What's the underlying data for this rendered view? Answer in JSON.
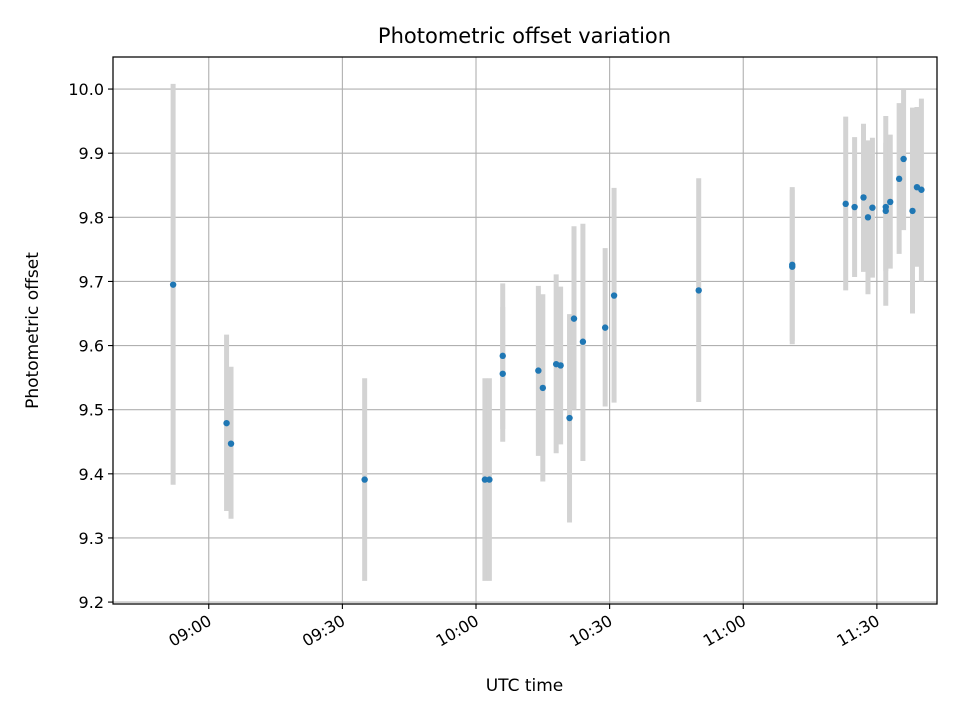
{
  "chart_data": {
    "type": "scatter",
    "title": "Photometric offset variation",
    "xlabel": "UTC time",
    "ylabel": "Photometric offset",
    "xlim_minutes": [
      518.5,
      703.5
    ],
    "ylim": [
      9.197,
      10.05
    ],
    "grid": true,
    "x_ticks": [
      {
        "m": 540,
        "label": "09:00"
      },
      {
        "m": 570,
        "label": "09:30"
      },
      {
        "m": 600,
        "label": "10:00"
      },
      {
        "m": 630,
        "label": "10:30"
      },
      {
        "m": 660,
        "label": "11:00"
      },
      {
        "m": 690,
        "label": "11:30"
      }
    ],
    "y_ticks": [
      {
        "v": 9.2,
        "label": "9.2"
      },
      {
        "v": 9.3,
        "label": "9.3"
      },
      {
        "v": 9.4,
        "label": "9.4"
      },
      {
        "v": 9.5,
        "label": "9.5"
      },
      {
        "v": 9.6,
        "label": "9.6"
      },
      {
        "v": 9.7,
        "label": "9.7"
      },
      {
        "v": 9.8,
        "label": "9.8"
      },
      {
        "v": 9.9,
        "label": "9.9"
      },
      {
        "v": 10.0,
        "label": "10.0"
      }
    ],
    "colors": {
      "point": "#1f77b4",
      "errorbar": "#d3d3d3",
      "grid": "#b0b0b0"
    },
    "points": [
      {
        "time": "08:52",
        "y": 9.695,
        "lo": 9.383,
        "hi": 10.008
      },
      {
        "time": "09:04",
        "y": 9.479,
        "lo": 9.342,
        "hi": 9.617
      },
      {
        "time": "09:05",
        "y": 9.447,
        "lo": 9.33,
        "hi": 9.567
      },
      {
        "time": "09:35",
        "y": 9.391,
        "lo": 9.233,
        "hi": 9.549
      },
      {
        "time": "10:02",
        "y": 9.391,
        "lo": 9.233,
        "hi": 9.549
      },
      {
        "time": "10:03",
        "y": 9.391,
        "lo": 9.233,
        "hi": 9.549
      },
      {
        "time": "10:06",
        "y": 9.556,
        "lo": 9.45,
        "hi": 9.66
      },
      {
        "time": "10:06",
        "y": 9.584,
        "lo": 9.47,
        "hi": 9.697
      },
      {
        "time": "10:14",
        "y": 9.561,
        "lo": 9.428,
        "hi": 9.693
      },
      {
        "time": "10:15",
        "y": 9.534,
        "lo": 9.388,
        "hi": 9.68
      },
      {
        "time": "10:18",
        "y": 9.571,
        "lo": 9.432,
        "hi": 9.711
      },
      {
        "time": "10:19",
        "y": 9.569,
        "lo": 9.446,
        "hi": 9.692
      },
      {
        "time": "10:21",
        "y": 9.487,
        "lo": 9.324,
        "hi": 9.649
      },
      {
        "time": "10:22",
        "y": 9.642,
        "lo": 9.5,
        "hi": 9.786
      },
      {
        "time": "10:24",
        "y": 9.606,
        "lo": 9.42,
        "hi": 9.79
      },
      {
        "time": "10:29",
        "y": 9.628,
        "lo": 9.505,
        "hi": 9.752
      },
      {
        "time": "10:31",
        "y": 9.678,
        "lo": 9.511,
        "hi": 9.846
      },
      {
        "time": "10:50",
        "y": 9.686,
        "lo": 9.512,
        "hi": 9.861
      },
      {
        "time": "11:11",
        "y": 9.726,
        "lo": 9.607,
        "hi": 9.847
      },
      {
        "time": "11:11",
        "y": 9.723,
        "lo": 9.602,
        "hi": 9.843
      },
      {
        "time": "11:23",
        "y": 9.821,
        "lo": 9.686,
        "hi": 9.957
      },
      {
        "time": "11:25",
        "y": 9.816,
        "lo": 9.707,
        "hi": 9.925
      },
      {
        "time": "11:27",
        "y": 9.831,
        "lo": 9.715,
        "hi": 9.946
      },
      {
        "time": "11:28",
        "y": 9.8,
        "lo": 9.68,
        "hi": 9.92
      },
      {
        "time": "11:29",
        "y": 9.815,
        "lo": 9.706,
        "hi": 9.924
      },
      {
        "time": "11:32",
        "y": 9.816,
        "lo": 9.716,
        "hi": 9.916
      },
      {
        "time": "11:32",
        "y": 9.81,
        "lo": 9.662,
        "hi": 9.958
      },
      {
        "time": "11:33",
        "y": 9.824,
        "lo": 9.72,
        "hi": 9.929
      },
      {
        "time": "11:35",
        "y": 9.86,
        "lo": 9.743,
        "hi": 9.978
      },
      {
        "time": "11:36",
        "y": 9.891,
        "lo": 9.78,
        "hi": 10.0
      },
      {
        "time": "11:38",
        "y": 9.81,
        "lo": 9.65,
        "hi": 9.971
      },
      {
        "time": "11:39",
        "y": 9.847,
        "lo": 9.723,
        "hi": 9.972
      },
      {
        "time": "11:40",
        "y": 9.843,
        "lo": 9.7,
        "hi": 9.985
      }
    ]
  }
}
